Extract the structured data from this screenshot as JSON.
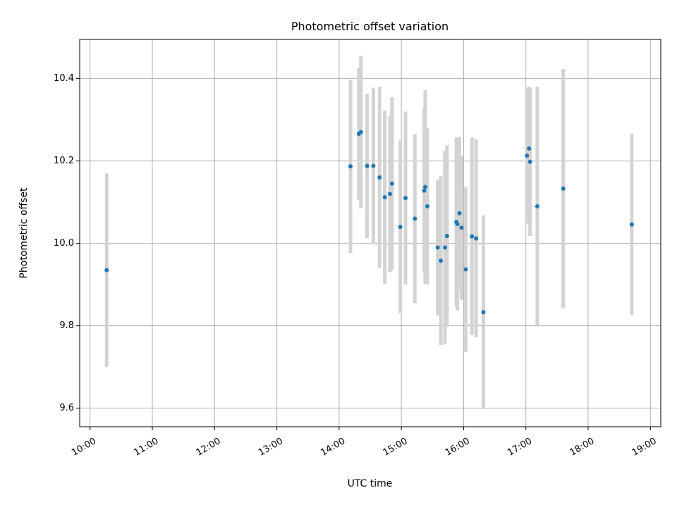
{
  "chart_data": {
    "type": "scatter",
    "title": "Photometric offset variation",
    "xlabel": "UTC time",
    "ylabel": "Photometric offset",
    "x_tick_labels": [
      "10:00",
      "11:00",
      "12:00",
      "13:00",
      "14:00",
      "15:00",
      "16:00",
      "17:00",
      "18:00",
      "19:00"
    ],
    "y_ticks": [
      9.6,
      9.8,
      10.0,
      10.2,
      10.4
    ],
    "y_tick_labels": [
      "9.6",
      "9.8",
      "10.0",
      "10.2",
      "10.4"
    ],
    "xlim": [
      "09:50",
      "19:10"
    ],
    "ylim": [
      9.555,
      10.495
    ],
    "grid": true,
    "colors": {
      "points": "#1f77b4",
      "error_bars": "#d3d3d3",
      "grid": "#b0b0b0",
      "axes": "#000000"
    },
    "points": [
      {
        "x": "10:16",
        "y": 9.935,
        "yerr": 0.235
      },
      {
        "x": "14:11",
        "y": 10.187,
        "yerr": 0.21
      },
      {
        "x": "14:19",
        "y": 10.266,
        "yerr": 0.16
      },
      {
        "x": "14:21",
        "y": 10.27,
        "yerr": 0.185
      },
      {
        "x": "14:27",
        "y": 10.188,
        "yerr": 0.175
      },
      {
        "x": "14:33",
        "y": 10.188,
        "yerr": 0.19
      },
      {
        "x": "14:39",
        "y": 10.16,
        "yerr": 0.22
      },
      {
        "x": "14:44",
        "y": 10.112,
        "yerr": 0.21
      },
      {
        "x": "14:49",
        "y": 10.12,
        "yerr": 0.19
      },
      {
        "x": "14:51",
        "y": 10.145,
        "yerr": 0.21
      },
      {
        "x": "14:59",
        "y": 10.04,
        "yerr": 0.21
      },
      {
        "x": "15:04",
        "y": 10.11,
        "yerr": 0.21
      },
      {
        "x": "15:13",
        "y": 10.06,
        "yerr": 0.205
      },
      {
        "x": "15:22",
        "y": 10.128,
        "yerr": 0.2
      },
      {
        "x": "15:23",
        "y": 10.137,
        "yerr": 0.235
      },
      {
        "x": "15:25",
        "y": 10.09,
        "yerr": 0.19
      },
      {
        "x": "15:35",
        "y": 9.99,
        "yerr": 0.165
      },
      {
        "x": "15:38",
        "y": 9.958,
        "yerr": 0.205
      },
      {
        "x": "15:42",
        "y": 9.99,
        "yerr": 0.235
      },
      {
        "x": "15:44",
        "y": 10.018,
        "yerr": 0.22
      },
      {
        "x": "15:53",
        "y": 10.052,
        "yerr": 0.205
      },
      {
        "x": "15:54",
        "y": 10.047,
        "yerr": 0.21
      },
      {
        "x": "15:56",
        "y": 10.073,
        "yerr": 0.185
      },
      {
        "x": "15:58",
        "y": 10.038,
        "yerr": 0.175
      },
      {
        "x": "16:02",
        "y": 9.937,
        "yerr": 0.2
      },
      {
        "x": "16:08",
        "y": 10.017,
        "yerr": 0.24
      },
      {
        "x": "16:12",
        "y": 10.012,
        "yerr": 0.24
      },
      {
        "x": "16:19",
        "y": 9.833,
        "yerr": 0.235
      },
      {
        "x": "17:01",
        "y": 10.213,
        "yerr": 0.165
      },
      {
        "x": "17:03",
        "y": 10.23,
        "yerr": 0.15
      },
      {
        "x": "17:04",
        "y": 10.198,
        "yerr": 0.18
      },
      {
        "x": "17:11",
        "y": 10.09,
        "yerr": 0.29
      },
      {
        "x": "17:36",
        "y": 10.133,
        "yerr": 0.29
      },
      {
        "x": "18:42",
        "y": 10.046,
        "yerr": 0.22
      }
    ]
  }
}
